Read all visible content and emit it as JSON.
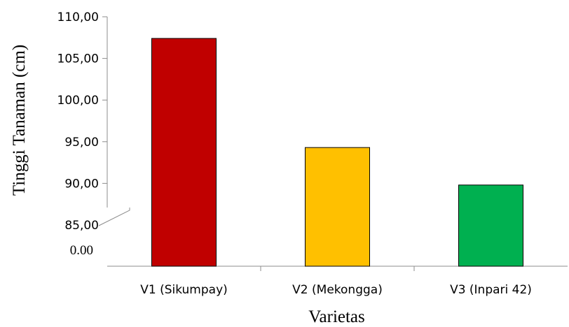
{
  "chart_data": {
    "type": "bar",
    "title": "",
    "xlabel": "Varietas",
    "ylabel": "Tinggi  Tanaman (cm)",
    "categories": [
      "V1 (Sikumpay)",
      "V2 (Mekongga)",
      "V3 (Inpari 42)"
    ],
    "values": [
      107.4,
      94.3,
      89.8
    ],
    "colors": [
      "#c00000",
      "#ffc000",
      "#00b050"
    ],
    "ylim": [
      85,
      110
    ],
    "y_ticks": [
      85,
      90,
      95,
      100,
      105,
      110
    ],
    "y_tick_labels": [
      "85,00",
      "90,00",
      "95,00",
      "100,00",
      "105,00",
      "110,00"
    ],
    "y_axis_break": true,
    "y_break_bottom_label": "0.00",
    "grid": false,
    "legend": "none"
  }
}
